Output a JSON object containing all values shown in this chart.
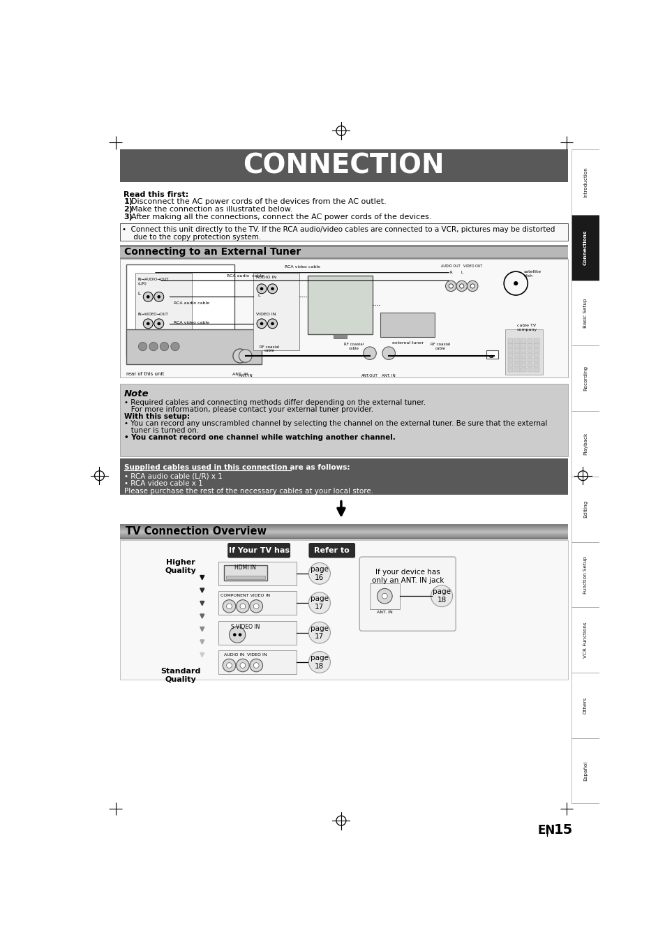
{
  "title": "CONNECTION",
  "title_bg": "#595959",
  "title_color": "#ffffff",
  "page_bg": "#ffffff",
  "sidebar_labels": [
    "Introduction",
    "Connections",
    "Basic Setup",
    "Recording",
    "Playback",
    "Editing",
    "Function Setup",
    "VCR Functions",
    "Others",
    "Español"
  ],
  "sidebar_active": "Connections",
  "read_first_bold": "Read this first:",
  "read_first_items": [
    "1) Disconnect the AC power cords of the devices from the AC outlet.",
    "2) Make the connection as illustrated below.",
    "3) After making all the connections, connect the AC power cords of the devices."
  ],
  "bullet_note_line1": "•  Connect this unit directly to the TV. If the RCA audio/video cables are connected to a VCR, pictures may be distorted",
  "bullet_note_line2": "     due to the copy protection system.",
  "section1_title": "Connecting to an External Tuner",
  "note_title": "Note",
  "note_lines": [
    [
      "• Required cables and connecting methods differ depending on the external tuner.",
      false
    ],
    [
      "   For more information, please contact your external tuner provider.",
      false
    ],
    [
      "With this setup:",
      true
    ],
    [
      "• You can record any unscrambled channel by selecting the channel on the external tuner. Be sure that the external",
      false
    ],
    [
      "   tuner is turned on.",
      false
    ],
    [
      "• You cannot record one channel while watching another channel.",
      true
    ]
  ],
  "cables_title": "Supplied cables used in this connection are as follows:",
  "cables_lines": [
    "• RCA audio cable (L/R) x 1",
    "• RCA video cable x 1",
    "Please purchase the rest of the necessary cables at your local store."
  ],
  "section2_title": "TV Connection Overview",
  "tv_table_header1": "If Your TV has",
  "tv_table_header2": "Refer to",
  "tv_rows": [
    {
      "label": "HDMI IN",
      "page": "page\n16",
      "type": "hdmi"
    },
    {
      "label": "COMPONENT VIDEO IN",
      "page": "page\n17",
      "type": "3circle"
    },
    {
      "label": "S-VIDEO IN",
      "page": "page\n17",
      "type": "svideo"
    },
    {
      "label": "AUDIO IN  VIDEO IN",
      "page": "page\n18",
      "type": "3circle"
    }
  ],
  "higher_quality": "Higher\nQuality",
  "standard_quality": "Standard\nQuality",
  "ant_note": "If your device has\nonly an ANT. IN jack",
  "ant_page": "page\n18",
  "footer_en": "EN",
  "footer_num": "15"
}
